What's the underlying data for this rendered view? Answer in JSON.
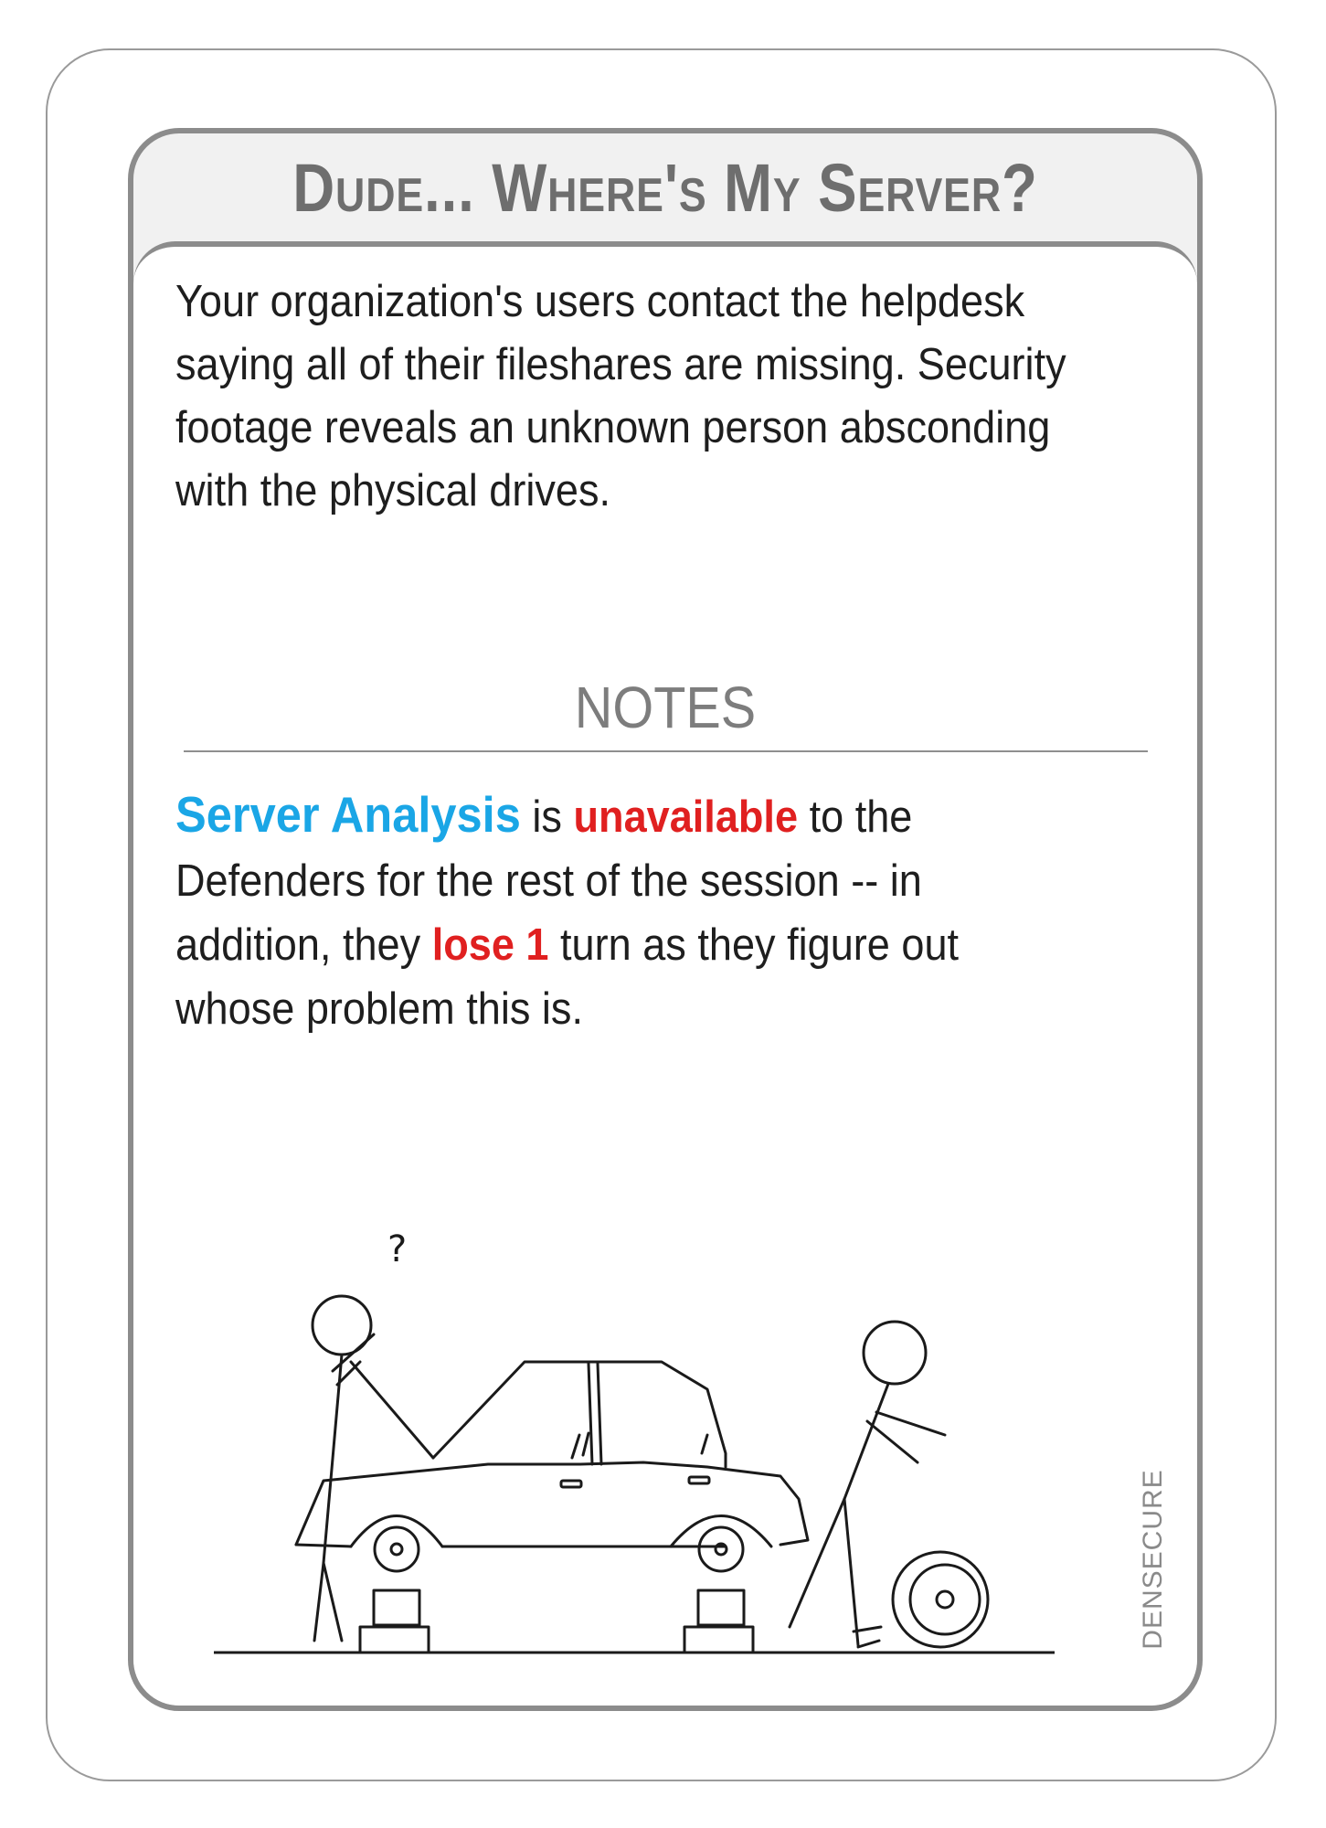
{
  "card": {
    "title": "Dude... Where's My Server?",
    "scenario": "Your organization's users contact the helpdesk saying all of their fileshares are missing. Security footage reveals an unknown person absconding with the physical drives.",
    "notes_heading": "NOTES",
    "notes": {
      "part1": "Server Analysis",
      "part2": " is ",
      "part3": "unavailable",
      "part4": " to the Defenders for the rest of the session -- in addition, they ",
      "part5": "lose 1",
      "part6": " turn as they figure out whose problem this is."
    },
    "illustration": {
      "question_mark": "?",
      "description_icon": "car-without-wheels-icon"
    },
    "brand": "DENSECURE"
  },
  "colors": {
    "frame": "#8c8c8c",
    "title_bg": "#f1f1f1",
    "title_text": "#6e6e6e",
    "highlight_blue": "#1aa6e6",
    "highlight_red": "#e02020"
  }
}
